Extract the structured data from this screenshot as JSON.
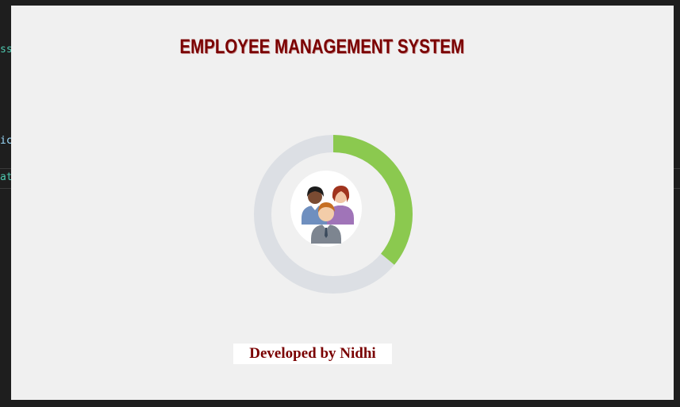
{
  "background_code": {
    "fragment_1": "ss",
    "fragment_2": "ic",
    "fragment_3": "at"
  },
  "splash": {
    "title": "EMPLOYEE MANAGEMENT SYSTEM",
    "credit": "Developed by Nidhi",
    "progress_fraction": 0.36,
    "colors": {
      "title": "#7a0000",
      "progress_fill": "#8bc94f",
      "progress_track": "#dcdfe4",
      "background": "#f0f0f0"
    },
    "icon": "employee-group-icon"
  }
}
